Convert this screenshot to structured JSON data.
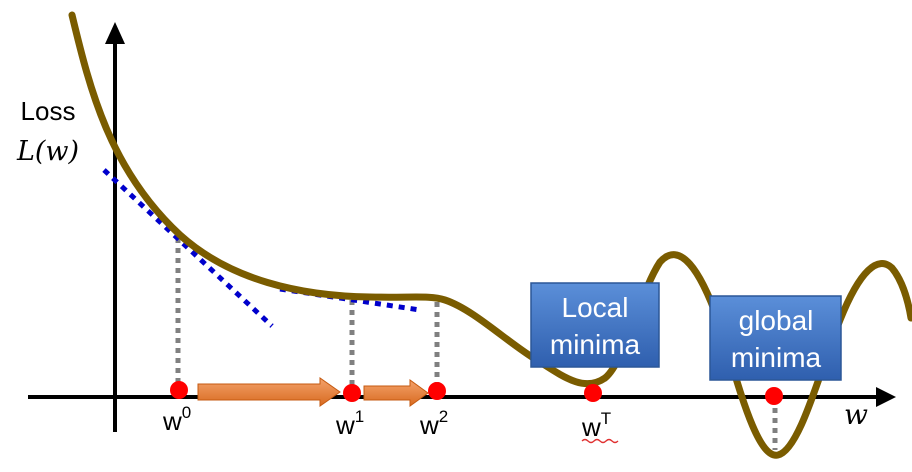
{
  "axis": {
    "y_label_line1": "Loss",
    "y_label_line2": "L(w)",
    "x_label": "w"
  },
  "points": {
    "w0": {
      "base": "w",
      "sup": "0"
    },
    "w1": {
      "base": "w",
      "sup": "1"
    },
    "w2": {
      "base": "w",
      "sup": "2"
    },
    "wT": {
      "base": "w",
      "sup": "T"
    }
  },
  "boxes": {
    "local": {
      "line1": "Local",
      "line2": "minima"
    },
    "global": {
      "line1": "global",
      "line2": "minima"
    }
  },
  "colors": {
    "curve": "#7a5c00",
    "tangent": "#0000cc",
    "point": "#ff0000",
    "arrow": "#ed7d31",
    "box": "#4a7bc8",
    "dotted_drop": "#808080"
  }
}
